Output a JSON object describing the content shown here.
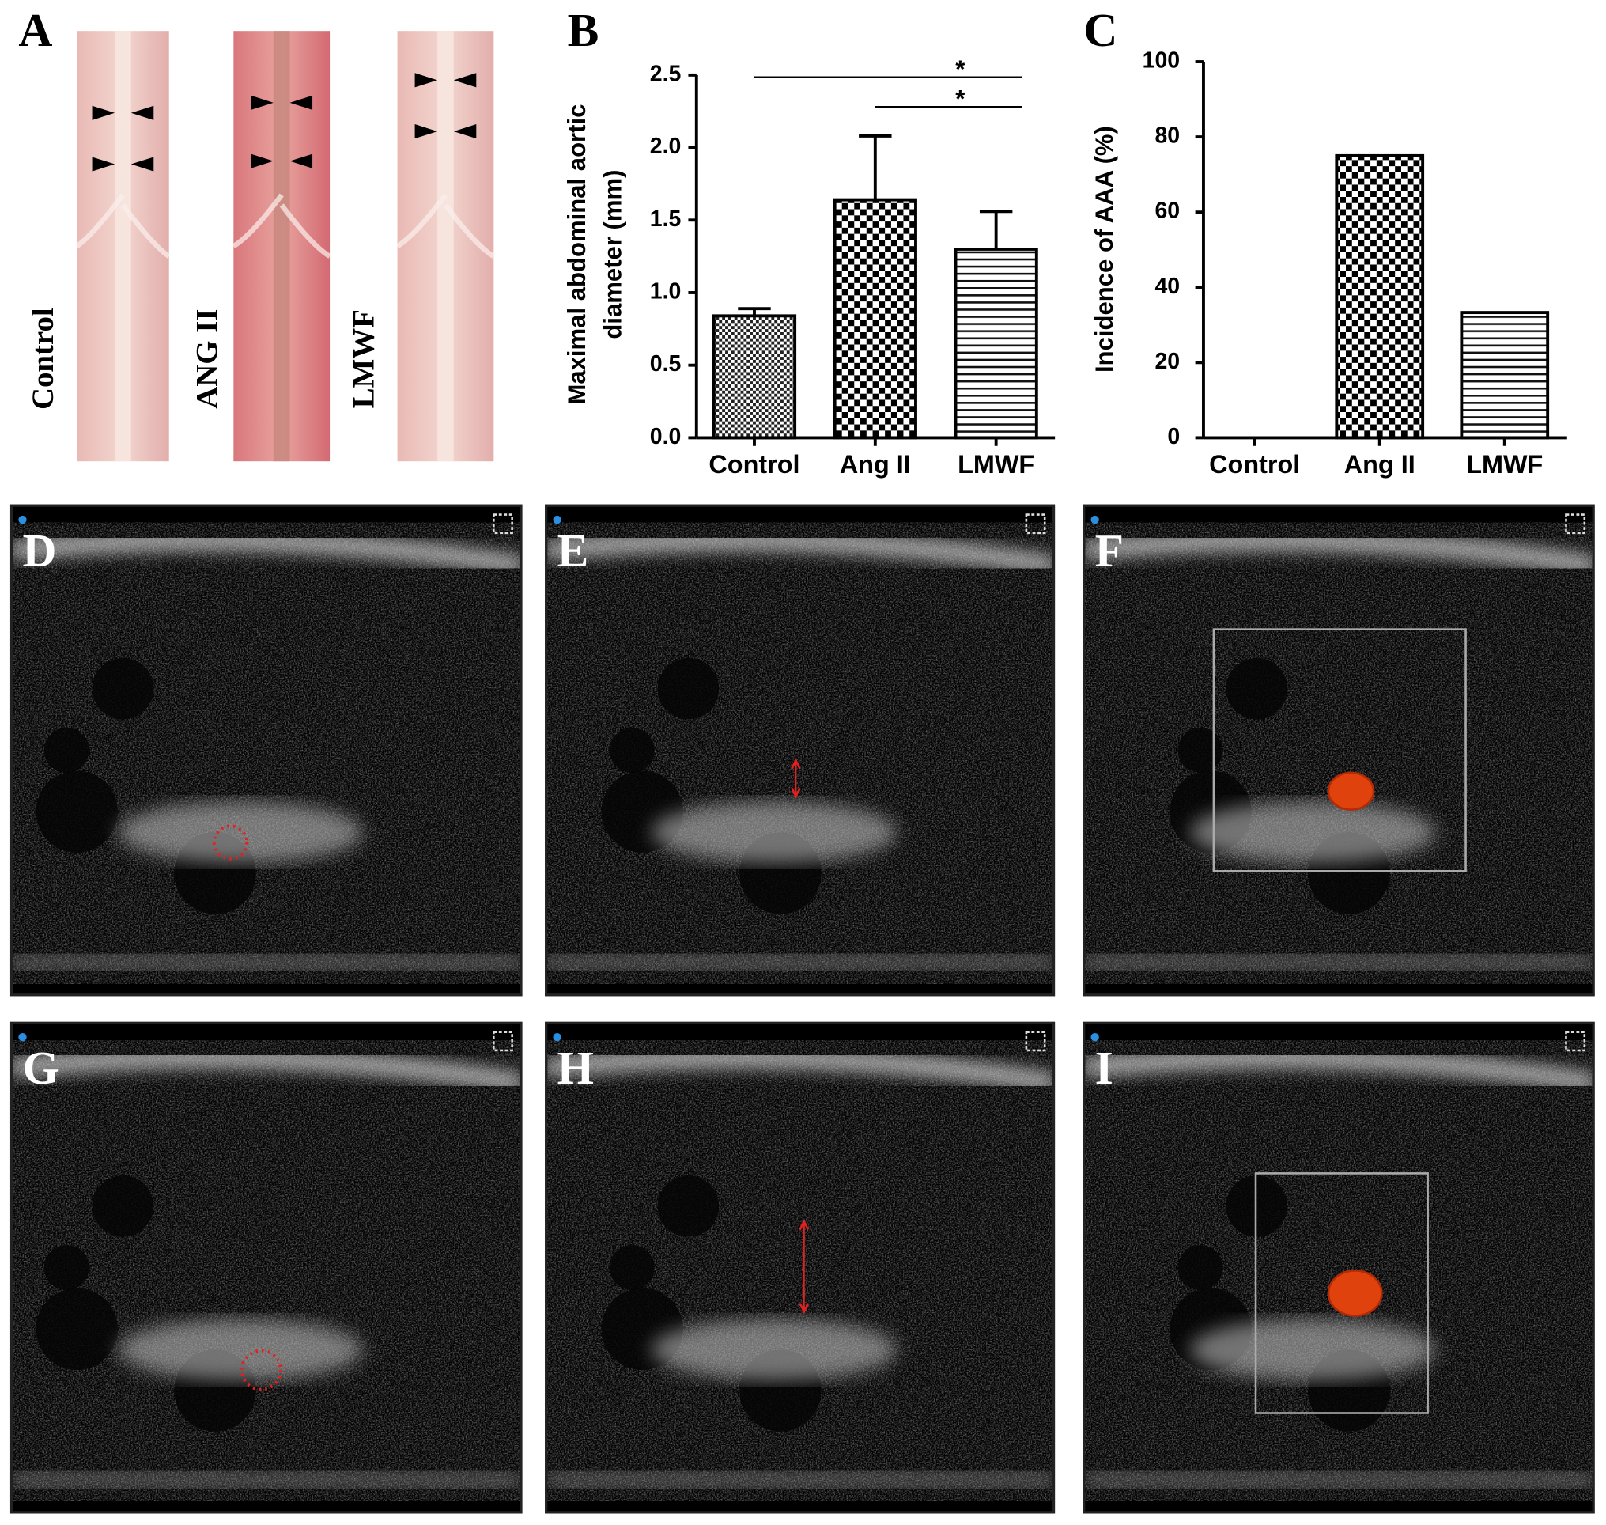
{
  "figure": {
    "panel_a": {
      "label": "A",
      "photos": [
        "Control",
        "ANG II",
        "LMWF"
      ]
    },
    "image_panels": [
      "D",
      "E",
      "F",
      "G",
      "H",
      "I"
    ]
  },
  "chart_data": [
    {
      "panel": "B",
      "type": "bar",
      "ylabel": [
        "Maximal abdominal aortic",
        "diameter (mm)"
      ],
      "categories": [
        "Control",
        "Ang II",
        "LMWF"
      ],
      "values": [
        0.84,
        1.64,
        1.3
      ],
      "errors": [
        0.05,
        0.44,
        0.26
      ],
      "color": "#000000",
      "ylim": [
        0,
        2.5
      ],
      "yticks": [
        {
          "value": 0,
          "label": "0.0"
        },
        0.5,
        {
          "value": 1,
          "label": "1.0"
        },
        1.5,
        {
          "value": 2,
          "label": "2.0"
        },
        2.5
      ],
      "annotations": [
        {
          "from": 0,
          "to": 2,
          "text": "*"
        },
        {
          "from": 1,
          "to": 2,
          "text": "*"
        }
      ]
    },
    {
      "panel": "C",
      "type": "bar",
      "ylabel": [
        "Incidence of AAA (%)"
      ],
      "categories": [
        "Control",
        "Ang II",
        "LMWF"
      ],
      "values": [
        0,
        75,
        33.3
      ],
      "color": "#000000",
      "ylim": [
        0,
        100
      ],
      "yticks": [
        0,
        20,
        40,
        60,
        80,
        100
      ]
    }
  ]
}
